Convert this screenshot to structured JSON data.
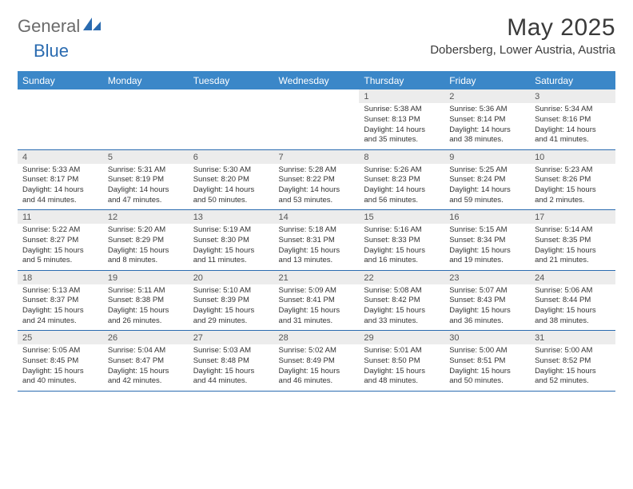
{
  "branding": {
    "text_general": "General",
    "text_blue": "Blue",
    "icon_color": "#2a6bb0",
    "text_general_color": "#6b6b6b"
  },
  "title": {
    "month_year": "May 2025",
    "location": "Dobersberg, Lower Austria, Austria"
  },
  "colors": {
    "header_bg": "#3b87c8",
    "daynum_bg": "#ececec",
    "rule": "#2a6bb0",
    "page_bg": "#ffffff"
  },
  "weekdays": [
    "Sunday",
    "Monday",
    "Tuesday",
    "Wednesday",
    "Thursday",
    "Friday",
    "Saturday"
  ],
  "weeks": [
    [
      null,
      null,
      null,
      null,
      {
        "n": "1",
        "sr": "5:38 AM",
        "ss": "8:13 PM",
        "dl": "14 hours and 35 minutes."
      },
      {
        "n": "2",
        "sr": "5:36 AM",
        "ss": "8:14 PM",
        "dl": "14 hours and 38 minutes."
      },
      {
        "n": "3",
        "sr": "5:34 AM",
        "ss": "8:16 PM",
        "dl": "14 hours and 41 minutes."
      }
    ],
    [
      {
        "n": "4",
        "sr": "5:33 AM",
        "ss": "8:17 PM",
        "dl": "14 hours and 44 minutes."
      },
      {
        "n": "5",
        "sr": "5:31 AM",
        "ss": "8:19 PM",
        "dl": "14 hours and 47 minutes."
      },
      {
        "n": "6",
        "sr": "5:30 AM",
        "ss": "8:20 PM",
        "dl": "14 hours and 50 minutes."
      },
      {
        "n": "7",
        "sr": "5:28 AM",
        "ss": "8:22 PM",
        "dl": "14 hours and 53 minutes."
      },
      {
        "n": "8",
        "sr": "5:26 AM",
        "ss": "8:23 PM",
        "dl": "14 hours and 56 minutes."
      },
      {
        "n": "9",
        "sr": "5:25 AM",
        "ss": "8:24 PM",
        "dl": "14 hours and 59 minutes."
      },
      {
        "n": "10",
        "sr": "5:23 AM",
        "ss": "8:26 PM",
        "dl": "15 hours and 2 minutes."
      }
    ],
    [
      {
        "n": "11",
        "sr": "5:22 AM",
        "ss": "8:27 PM",
        "dl": "15 hours and 5 minutes."
      },
      {
        "n": "12",
        "sr": "5:20 AM",
        "ss": "8:29 PM",
        "dl": "15 hours and 8 minutes."
      },
      {
        "n": "13",
        "sr": "5:19 AM",
        "ss": "8:30 PM",
        "dl": "15 hours and 11 minutes."
      },
      {
        "n": "14",
        "sr": "5:18 AM",
        "ss": "8:31 PM",
        "dl": "15 hours and 13 minutes."
      },
      {
        "n": "15",
        "sr": "5:16 AM",
        "ss": "8:33 PM",
        "dl": "15 hours and 16 minutes."
      },
      {
        "n": "16",
        "sr": "5:15 AM",
        "ss": "8:34 PM",
        "dl": "15 hours and 19 minutes."
      },
      {
        "n": "17",
        "sr": "5:14 AM",
        "ss": "8:35 PM",
        "dl": "15 hours and 21 minutes."
      }
    ],
    [
      {
        "n": "18",
        "sr": "5:13 AM",
        "ss": "8:37 PM",
        "dl": "15 hours and 24 minutes."
      },
      {
        "n": "19",
        "sr": "5:11 AM",
        "ss": "8:38 PM",
        "dl": "15 hours and 26 minutes."
      },
      {
        "n": "20",
        "sr": "5:10 AM",
        "ss": "8:39 PM",
        "dl": "15 hours and 29 minutes."
      },
      {
        "n": "21",
        "sr": "5:09 AM",
        "ss": "8:41 PM",
        "dl": "15 hours and 31 minutes."
      },
      {
        "n": "22",
        "sr": "5:08 AM",
        "ss": "8:42 PM",
        "dl": "15 hours and 33 minutes."
      },
      {
        "n": "23",
        "sr": "5:07 AM",
        "ss": "8:43 PM",
        "dl": "15 hours and 36 minutes."
      },
      {
        "n": "24",
        "sr": "5:06 AM",
        "ss": "8:44 PM",
        "dl": "15 hours and 38 minutes."
      }
    ],
    [
      {
        "n": "25",
        "sr": "5:05 AM",
        "ss": "8:45 PM",
        "dl": "15 hours and 40 minutes."
      },
      {
        "n": "26",
        "sr": "5:04 AM",
        "ss": "8:47 PM",
        "dl": "15 hours and 42 minutes."
      },
      {
        "n": "27",
        "sr": "5:03 AM",
        "ss": "8:48 PM",
        "dl": "15 hours and 44 minutes."
      },
      {
        "n": "28",
        "sr": "5:02 AM",
        "ss": "8:49 PM",
        "dl": "15 hours and 46 minutes."
      },
      {
        "n": "29",
        "sr": "5:01 AM",
        "ss": "8:50 PM",
        "dl": "15 hours and 48 minutes."
      },
      {
        "n": "30",
        "sr": "5:00 AM",
        "ss": "8:51 PM",
        "dl": "15 hours and 50 minutes."
      },
      {
        "n": "31",
        "sr": "5:00 AM",
        "ss": "8:52 PM",
        "dl": "15 hours and 52 minutes."
      }
    ]
  ],
  "labels": {
    "sunrise_prefix": "Sunrise: ",
    "sunset_prefix": "Sunset: ",
    "daylight_prefix": "Daylight: "
  }
}
